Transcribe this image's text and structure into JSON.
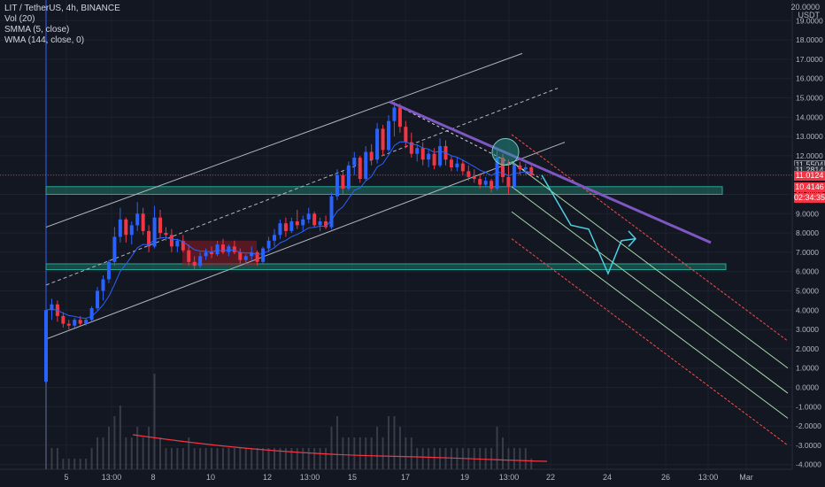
{
  "legend": {
    "symbol_line": "LIT / TetherUS, 4h, BINANCE",
    "vol": "Vol (20)",
    "smma": "SMMA (5, close)",
    "wma": "WMA (144, close, 0)"
  },
  "axis_unit": "USDT",
  "axis_top_partial": "20.0000",
  "price_tags": [
    {
      "text": "11.5504",
      "bg": "#1e222d",
      "fg": "#d1d4dc",
      "border": "#787b86"
    },
    {
      "text": "11.2814",
      "bg": "#2a2e39",
      "fg": "#d1d4dc",
      "border": "#2a2e39"
    },
    {
      "text": "11.0124",
      "bg": "#f23645",
      "fg": "#ffffff",
      "border": "#f23645"
    },
    {
      "text": "10.4146",
      "bg": "#f23645",
      "fg": "#ffffff",
      "border": "#f23645"
    },
    {
      "text": "02:34:35",
      "bg": "#f23645",
      "fg": "#ffffff",
      "border": "#f23645"
    }
  ],
  "colors": {
    "background": "#131722",
    "grid": "#1e222d",
    "up": "#2962ff",
    "down": "#f23645",
    "zone_fill": "#1f5f55",
    "zone_border": "#26a69a",
    "trendline": "#7e57c2",
    "projection": "#4dd0e1",
    "channel": "#b2b5be",
    "pitchfork_green": "#a5d6a7",
    "pitchfork_red": "#ef5350",
    "wma": "#f23645"
  },
  "chart_data": {
    "type": "candlestick",
    "title": "LIT / TetherUS, 4h, BINANCE",
    "ylabel": "USDT",
    "ylim": [
      -4.5,
      20
    ],
    "y_ticks": [
      "19.0000",
      "18.0000",
      "17.0000",
      "16.0000",
      "15.0000",
      "14.0000",
      "13.0000",
      "12.0000",
      "11.0000",
      "10.0000",
      "9.0000",
      "8.0000",
      "7.0000",
      "6.0000",
      "5.0000",
      "4.0000",
      "3.0000",
      "2.0000",
      "1.0000",
      "0.0000",
      "-1.0000",
      "-2.0000",
      "-3.0000",
      "-4.0000"
    ],
    "x_ticks": [
      "5",
      "13:00",
      "8",
      "10",
      "12",
      "13:00",
      "15",
      "17",
      "19",
      "13:00",
      "22",
      "24",
      "26",
      "13:00",
      "Mar"
    ],
    "grid": true,
    "candles": [
      {
        "o": 0.3,
        "h": 5.2,
        "l": 0.2,
        "c": 4.0
      },
      {
        "o": 4.0,
        "h": 4.6,
        "l": 3.5,
        "c": 4.3
      },
      {
        "o": 4.3,
        "h": 4.5,
        "l": 3.4,
        "c": 3.7
      },
      {
        "o": 3.7,
        "h": 3.9,
        "l": 3.1,
        "c": 3.3
      },
      {
        "o": 3.3,
        "h": 3.5,
        "l": 3.0,
        "c": 3.2
      },
      {
        "o": 3.2,
        "h": 3.6,
        "l": 3.1,
        "c": 3.5
      },
      {
        "o": 3.5,
        "h": 3.7,
        "l": 3.2,
        "c": 3.3
      },
      {
        "o": 3.3,
        "h": 3.6,
        "l": 3.2,
        "c": 3.5
      },
      {
        "o": 3.5,
        "h": 4.2,
        "l": 3.4,
        "c": 4.1
      },
      {
        "o": 4.1,
        "h": 5.2,
        "l": 4.0,
        "c": 5.0
      },
      {
        "o": 5.0,
        "h": 5.8,
        "l": 4.5,
        "c": 5.6
      },
      {
        "o": 5.6,
        "h": 6.6,
        "l": 5.4,
        "c": 6.5
      },
      {
        "o": 6.5,
        "h": 8.3,
        "l": 6.3,
        "c": 7.8
      },
      {
        "o": 7.8,
        "h": 9.3,
        "l": 7.5,
        "c": 8.7
      },
      {
        "o": 8.7,
        "h": 8.8,
        "l": 7.5,
        "c": 7.9
      },
      {
        "o": 7.9,
        "h": 8.6,
        "l": 7.4,
        "c": 8.4
      },
      {
        "o": 8.4,
        "h": 9.6,
        "l": 8.1,
        "c": 9.0
      },
      {
        "o": 9.0,
        "h": 9.3,
        "l": 7.9,
        "c": 8.1
      },
      {
        "o": 8.1,
        "h": 8.4,
        "l": 7.0,
        "c": 7.3
      },
      {
        "o": 7.3,
        "h": 9.4,
        "l": 7.2,
        "c": 8.8
      },
      {
        "o": 8.8,
        "h": 9.2,
        "l": 7.7,
        "c": 8.0
      },
      {
        "o": 8.0,
        "h": 8.3,
        "l": 7.6,
        "c": 7.9
      },
      {
        "o": 7.9,
        "h": 8.2,
        "l": 7.0,
        "c": 7.3
      },
      {
        "o": 7.3,
        "h": 7.7,
        "l": 7.0,
        "c": 7.6
      },
      {
        "o": 7.6,
        "h": 7.9,
        "l": 7.0,
        "c": 7.1
      },
      {
        "o": 7.1,
        "h": 7.4,
        "l": 6.3,
        "c": 6.5
      },
      {
        "o": 6.5,
        "h": 6.8,
        "l": 6.1,
        "c": 6.3
      },
      {
        "o": 6.3,
        "h": 7.0,
        "l": 6.2,
        "c": 6.8
      },
      {
        "o": 6.8,
        "h": 7.2,
        "l": 6.6,
        "c": 7.0
      },
      {
        "o": 7.0,
        "h": 7.3,
        "l": 6.7,
        "c": 6.9
      },
      {
        "o": 6.9,
        "h": 7.6,
        "l": 6.8,
        "c": 7.4
      },
      {
        "o": 7.4,
        "h": 7.7,
        "l": 6.9,
        "c": 7.0
      },
      {
        "o": 7.0,
        "h": 7.4,
        "l": 6.8,
        "c": 7.3
      },
      {
        "o": 7.3,
        "h": 7.6,
        "l": 6.9,
        "c": 7.0
      },
      {
        "o": 7.0,
        "h": 7.2,
        "l": 6.4,
        "c": 6.6
      },
      {
        "o": 6.6,
        "h": 6.9,
        "l": 6.4,
        "c": 6.8
      },
      {
        "o": 6.8,
        "h": 7.3,
        "l": 6.6,
        "c": 7.0
      },
      {
        "o": 7.0,
        "h": 7.1,
        "l": 6.3,
        "c": 6.5
      },
      {
        "o": 6.5,
        "h": 7.3,
        "l": 6.4,
        "c": 7.2
      },
      {
        "o": 7.2,
        "h": 7.8,
        "l": 7.0,
        "c": 7.6
      },
      {
        "o": 7.6,
        "h": 8.2,
        "l": 7.3,
        "c": 7.9
      },
      {
        "o": 7.9,
        "h": 8.7,
        "l": 7.7,
        "c": 8.5
      },
      {
        "o": 8.5,
        "h": 8.8,
        "l": 7.8,
        "c": 8.1
      },
      {
        "o": 8.1,
        "h": 8.8,
        "l": 8.0,
        "c": 8.6
      },
      {
        "o": 8.6,
        "h": 9.2,
        "l": 8.2,
        "c": 8.4
      },
      {
        "o": 8.4,
        "h": 8.9,
        "l": 8.1,
        "c": 8.7
      },
      {
        "o": 8.7,
        "h": 9.3,
        "l": 8.5,
        "c": 9.0
      },
      {
        "o": 9.0,
        "h": 9.1,
        "l": 8.3,
        "c": 8.4
      },
      {
        "o": 8.4,
        "h": 8.8,
        "l": 8.1,
        "c": 8.6
      },
      {
        "o": 8.6,
        "h": 8.9,
        "l": 8.2,
        "c": 8.3
      },
      {
        "o": 8.3,
        "h": 10.1,
        "l": 8.2,
        "c": 9.9
      },
      {
        "o": 9.9,
        "h": 11.3,
        "l": 9.7,
        "c": 11.0
      },
      {
        "o": 11.0,
        "h": 11.2,
        "l": 10.0,
        "c": 10.3
      },
      {
        "o": 10.3,
        "h": 11.7,
        "l": 10.2,
        "c": 11.5
      },
      {
        "o": 11.5,
        "h": 12.2,
        "l": 11.0,
        "c": 11.9
      },
      {
        "o": 11.9,
        "h": 12.0,
        "l": 10.6,
        "c": 10.8
      },
      {
        "o": 10.8,
        "h": 12.5,
        "l": 10.7,
        "c": 12.2
      },
      {
        "o": 12.2,
        "h": 12.6,
        "l": 11.5,
        "c": 11.8
      },
      {
        "o": 11.8,
        "h": 13.7,
        "l": 11.6,
        "c": 13.4
      },
      {
        "o": 13.4,
        "h": 13.6,
        "l": 12.0,
        "c": 12.3
      },
      {
        "o": 12.3,
        "h": 14.1,
        "l": 12.2,
        "c": 13.8
      },
      {
        "o": 13.8,
        "h": 14.8,
        "l": 13.0,
        "c": 14.5
      },
      {
        "o": 14.5,
        "h": 14.7,
        "l": 13.2,
        "c": 13.5
      },
      {
        "o": 13.5,
        "h": 13.8,
        "l": 12.4,
        "c": 12.7
      },
      {
        "o": 12.7,
        "h": 13.2,
        "l": 11.9,
        "c": 12.1
      },
      {
        "o": 12.1,
        "h": 12.6,
        "l": 11.7,
        "c": 12.4
      },
      {
        "o": 12.4,
        "h": 12.7,
        "l": 11.5,
        "c": 11.8
      },
      {
        "o": 11.8,
        "h": 12.3,
        "l": 11.4,
        "c": 12.1
      },
      {
        "o": 12.1,
        "h": 12.4,
        "l": 11.3,
        "c": 11.5
      },
      {
        "o": 11.5,
        "h": 12.9,
        "l": 11.4,
        "c": 12.5
      },
      {
        "o": 12.5,
        "h": 12.8,
        "l": 11.5,
        "c": 11.8
      },
      {
        "o": 11.8,
        "h": 12.0,
        "l": 11.2,
        "c": 11.4
      },
      {
        "o": 11.4,
        "h": 11.9,
        "l": 11.2,
        "c": 11.6
      },
      {
        "o": 11.6,
        "h": 11.8,
        "l": 11.0,
        "c": 11.2
      },
      {
        "o": 11.2,
        "h": 11.5,
        "l": 10.7,
        "c": 10.9
      },
      {
        "o": 10.9,
        "h": 11.3,
        "l": 10.6,
        "c": 10.8
      },
      {
        "o": 10.8,
        "h": 11.0,
        "l": 10.3,
        "c": 10.5
      },
      {
        "o": 10.5,
        "h": 10.9,
        "l": 10.4,
        "c": 10.7
      },
      {
        "o": 10.7,
        "h": 10.8,
        "l": 10.1,
        "c": 10.3
      },
      {
        "o": 10.3,
        "h": 12.4,
        "l": 10.2,
        "c": 11.9
      },
      {
        "o": 11.9,
        "h": 12.1,
        "l": 10.6,
        "c": 10.9
      },
      {
        "o": 10.9,
        "h": 11.8,
        "l": 10.0,
        "c": 10.4
      },
      {
        "o": 10.4,
        "h": 11.6,
        "l": 10.3,
        "c": 11.5
      },
      {
        "o": 11.5,
        "h": 11.7,
        "l": 11.0,
        "c": 11.3
      },
      {
        "o": 11.3,
        "h": 11.6,
        "l": 11.0,
        "c": 11.4
      },
      {
        "o": 11.4,
        "h": 11.5,
        "l": 10.9,
        "c": 11.0
      }
    ],
    "volume": [
      1.0,
      0.2,
      0.2,
      0.1,
      0.1,
      0.1,
      0.1,
      0.1,
      0.2,
      0.3,
      0.3,
      0.4,
      0.5,
      0.6,
      0.3,
      0.3,
      0.4,
      0.3,
      0.4,
      0.9,
      0.3,
      0.2,
      0.2,
      0.2,
      0.2,
      0.3,
      0.2,
      0.2,
      0.2,
      0.2,
      0.2,
      0.2,
      0.2,
      0.2,
      0.2,
      0.2,
      0.2,
      0.2,
      0.2,
      0.2,
      0.2,
      0.2,
      0.2,
      0.2,
      0.2,
      0.2,
      0.2,
      0.2,
      0.2,
      0.2,
      0.4,
      0.5,
      0.3,
      0.3,
      0.3,
      0.3,
      0.3,
      0.3,
      0.4,
      0.3,
      0.5,
      0.5,
      0.4,
      0.3,
      0.3,
      0.2,
      0.2,
      0.2,
      0.2,
      0.2,
      0.2,
      0.2,
      0.2,
      0.2,
      0.2,
      0.2,
      0.2,
      0.2,
      0.2,
      0.4,
      0.3,
      0.2,
      0.2,
      0.2,
      0.2,
      0.1
    ],
    "support_zones": [
      [
        10.0,
        10.4
      ],
      [
        6.1,
        6.4
      ]
    ],
    "projection_path": [
      [
        11.0,
        10.2
      ],
      [
        8.0,
        5.9
      ],
      [
        7.7
      ]
    ]
  }
}
